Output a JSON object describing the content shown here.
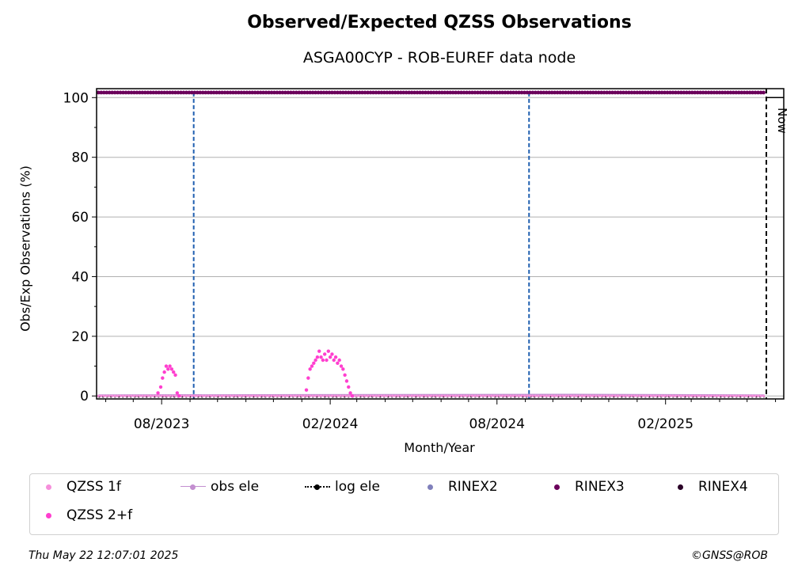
{
  "chart_data": {
    "type": "scatter",
    "title": "Observed/Expected QZSS Observations",
    "subtitle": "ASGA00CYP - ROB-EUREF data node",
    "xlabel": "Month/Year",
    "ylabel": "Obs/Exp Observations (%)",
    "x_ticks": [
      "08/2023",
      "02/2024",
      "08/2024",
      "02/2025"
    ],
    "y_ticks": [
      "0",
      "20",
      "40",
      "60",
      "80",
      "100"
    ],
    "xlim": [
      "2023-05-22",
      "2025-06-10"
    ],
    "ylim": [
      -1,
      103
    ],
    "grid": "horizontal",
    "legend_position": "bottom",
    "now_label": "Now",
    "now_date": "2025-05-22",
    "vertical_markers": [
      "2023-09-05",
      "2024-09-05"
    ],
    "series": [
      {
        "name": "QZSS 1f",
        "color": "#f68fdb",
        "marker": "dot",
        "linestyle": "none",
        "x": [
          "2023-05-24",
          "2025-05-20"
        ],
        "y": [
          0,
          0
        ]
      },
      {
        "name": "QZSS 2+f",
        "color": "#ff3fcf",
        "marker": "dot",
        "linestyle": "none",
        "x": [
          "2023-07-28",
          "2023-07-31",
          "2023-08-02",
          "2023-08-04",
          "2023-08-06",
          "2023-08-08",
          "2023-08-10",
          "2023-08-12",
          "2023-08-14",
          "2023-08-16",
          "2023-08-18",
          "2023-08-20",
          "2024-01-06",
          "2024-01-08",
          "2024-01-10",
          "2024-01-12",
          "2024-01-14",
          "2024-01-16",
          "2024-01-18",
          "2024-01-20",
          "2024-01-22",
          "2024-01-24",
          "2024-01-26",
          "2024-01-28",
          "2024-01-30",
          "2024-02-01",
          "2024-02-03",
          "2024-02-05",
          "2024-02-07",
          "2024-02-09",
          "2024-02-11",
          "2024-02-13",
          "2024-02-15",
          "2024-02-17",
          "2024-02-19",
          "2024-02-21",
          "2024-02-23",
          "2024-02-25"
        ],
        "y": [
          1,
          3,
          6,
          8,
          10,
          9,
          10,
          9,
          8,
          7,
          1,
          0,
          2,
          6,
          9,
          10,
          11,
          12,
          13,
          15,
          13,
          12,
          14,
          12,
          15,
          13,
          14,
          12,
          13,
          11,
          12,
          10,
          9,
          7,
          5,
          3,
          1,
          0
        ]
      },
      {
        "name": "obs ele",
        "color": "#c38fd0",
        "marker": "dot",
        "linestyle": "solid",
        "x": [
          "2023-05-24",
          "2024-10-20",
          "2025-05-20"
        ],
        "y": [
          0.2,
          0.4,
          0.2
        ]
      },
      {
        "name": "log ele",
        "color": "#000000",
        "marker": "dot",
        "linestyle": "dotted",
        "x": [
          "2023-05-24",
          "2025-05-20"
        ],
        "y": [
          -0.3,
          -0.3
        ]
      },
      {
        "name": "RINEX2",
        "color": "#8080bb",
        "marker": "dot",
        "linestyle": "none",
        "x": [],
        "y": []
      },
      {
        "name": "RINEX3",
        "color": "#6b005b",
        "marker": "dot",
        "linestyle": "none",
        "x": [
          "2023-05-24",
          "2025-05-20"
        ],
        "y": [
          101.7,
          101.7
        ]
      },
      {
        "name": "RINEX4",
        "color": "#2a0027",
        "marker": "dot",
        "linestyle": "none",
        "x": [],
        "y": []
      }
    ]
  },
  "footer": {
    "timestamp": "Thu May 22 12:07:01 2025",
    "copyright": "©GNSS@ROB"
  }
}
